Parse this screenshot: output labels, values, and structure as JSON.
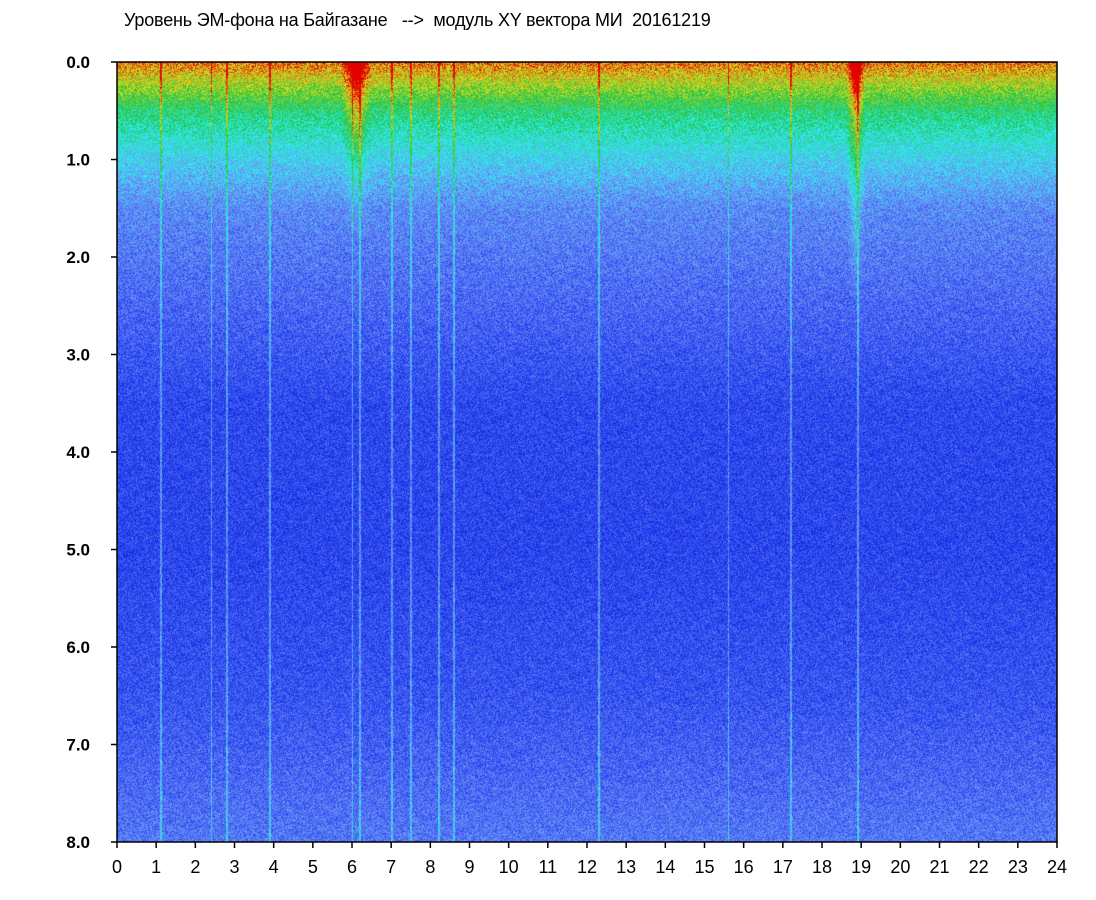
{
  "chart_data": {
    "type": "heatmap",
    "title": "Уровень ЭМ-фона на Байгазане   -->  модуль XY вектора МИ  20161219",
    "xlabel": "",
    "ylabel": "",
    "xlim": [
      0,
      24
    ],
    "ylim": [
      0,
      8
    ],
    "y_inverted": true,
    "grid": false,
    "x_ticks": [
      "0",
      "1",
      "2",
      "3",
      "4",
      "5",
      "6",
      "7",
      "8",
      "9",
      "10",
      "11",
      "12",
      "13",
      "14",
      "15",
      "16",
      "17",
      "18",
      "19",
      "20",
      "21",
      "22",
      "23",
      "24"
    ],
    "y_ticks": [
      "0.0",
      "1.0",
      "2.0",
      "3.0",
      "4.0",
      "5.0",
      "6.0",
      "7.0",
      "8.0"
    ],
    "colorscale": [
      "#0a18d8",
      "#2a4af0",
      "#6f8bf5",
      "#2ff0f0",
      "#20c040",
      "#e0e020",
      "#e00000"
    ],
    "background_intensity": [
      {
        "y": 0.0,
        "level": 0.92
      },
      {
        "y": 0.5,
        "level": 0.62
      },
      {
        "y": 1.0,
        "level": 0.45
      },
      {
        "y": 1.5,
        "level": 0.32
      },
      {
        "y": 2.5,
        "level": 0.24
      },
      {
        "y": 3.5,
        "level": 0.16
      },
      {
        "y": 5.0,
        "level": 0.15
      },
      {
        "y": 6.5,
        "level": 0.19
      },
      {
        "y": 7.5,
        "level": 0.25
      },
      {
        "y": 8.0,
        "level": 0.28
      }
    ],
    "high_intensity_bands": [
      {
        "x_start": 5.7,
        "x_end": 6.5,
        "y_depth": 1.8
      },
      {
        "x_start": 18.6,
        "x_end": 19.1,
        "y_depth": 2.6
      }
    ],
    "vertical_streaks_x": [
      1.1,
      2.4,
      2.8,
      3.9,
      6.0,
      6.2,
      7.0,
      7.5,
      8.2,
      8.6,
      12.3,
      15.6,
      17.2,
      18.9
    ]
  }
}
